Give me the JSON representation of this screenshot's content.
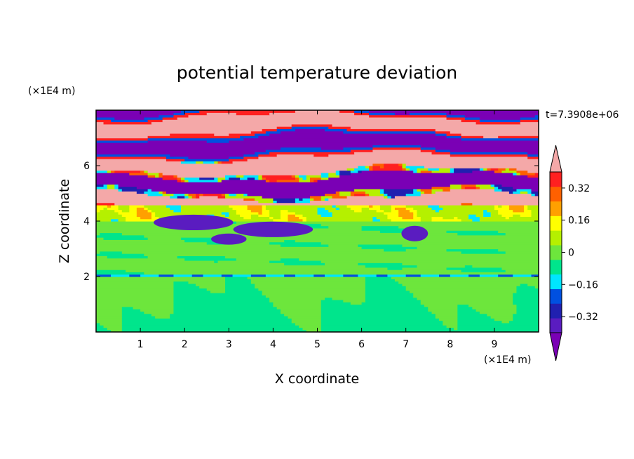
{
  "chart_data": {
    "type": "heatmap",
    "title": "potential temperature deviation",
    "xlabel": "X coordinate",
    "ylabel": "Z coordinate",
    "x_unit": "(×1E4 m)",
    "y_unit": "(×1E4 m)",
    "time_label": "t=7.3908e+06",
    "xlim": [
      0,
      10
    ],
    "ylim": [
      0,
      8
    ],
    "x_ticks": [
      "1",
      "2",
      "3",
      "4",
      "5",
      "6",
      "7",
      "8",
      "9"
    ],
    "y_ticks": [
      "2",
      "4",
      "6"
    ],
    "colorbar": {
      "levels": [
        -0.48,
        -0.4,
        -0.32,
        -0.24,
        -0.16,
        -0.08,
        0,
        0.08,
        0.16,
        0.24,
        0.32,
        0.4,
        0.48
      ],
      "tick_labels": [
        "0.32",
        "0.16",
        "0",
        "−0.16",
        "−0.32"
      ],
      "colors": [
        "#7a00b5",
        "#5a1cc0",
        "#2020b0",
        "#0050e0",
        "#00e5ff",
        "#00e58c",
        "#6de63c",
        "#b5f000",
        "#ffff00",
        "#ffa000",
        "#ff6000",
        "#ff2020",
        "#f4a8a8"
      ]
    },
    "layers": [
      {
        "z_range": [
          0,
          2.0
        ],
        "dominant": "mix of -0.08 and 0"
      },
      {
        "z_range": [
          2.0,
          4.0
        ],
        "dominant": "0 with thin -0.08 bands"
      },
      {
        "z_range": [
          4.0,
          4.6
        ],
        "dominant": "0.08 to 0.24"
      },
      {
        "z_range": [
          4.6,
          8.0
        ],
        "dominant": "alternating ≥0.48 and ≤-0.48 layers"
      }
    ],
    "grid": false
  }
}
